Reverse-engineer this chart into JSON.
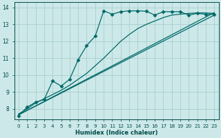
{
  "xlabel": "Humidex (Indice chaleur)",
  "background_color": "#cce8e8",
  "grid_color": "#aacece",
  "line_color": "#006868",
  "xlim": [
    -0.5,
    23.5
  ],
  "ylim": [
    7.4,
    14.3
  ],
  "xticks": [
    0,
    1,
    2,
    3,
    4,
    5,
    6,
    7,
    8,
    9,
    10,
    11,
    12,
    13,
    14,
    15,
    16,
    17,
    18,
    19,
    20,
    21,
    22,
    23
  ],
  "yticks": [
    8,
    9,
    10,
    11,
    12,
    13,
    14
  ],
  "series_zigzag_x": [
    0,
    1,
    2,
    3,
    4,
    5,
    6,
    7,
    8,
    9,
    10,
    11,
    12,
    13,
    14,
    15,
    16,
    17,
    18,
    19,
    20,
    21,
    22,
    23
  ],
  "series_zigzag_y": [
    7.6,
    8.1,
    8.4,
    8.55,
    9.65,
    9.35,
    9.75,
    10.9,
    11.75,
    12.3,
    13.8,
    13.6,
    13.75,
    13.8,
    13.8,
    13.78,
    13.55,
    13.75,
    13.75,
    13.75,
    13.55,
    13.65,
    13.6,
    13.6
  ],
  "series_curved_x": [
    0,
    1,
    2,
    3,
    4,
    5,
    6,
    7,
    8,
    9,
    10,
    11,
    12,
    13,
    14,
    15,
    16,
    17,
    18,
    19,
    20,
    21,
    22,
    23
  ],
  "series_curved_y": [
    7.7,
    8.0,
    8.35,
    8.6,
    8.85,
    9.1,
    9.4,
    9.75,
    10.1,
    10.55,
    11.0,
    11.5,
    12.0,
    12.4,
    12.75,
    13.0,
    13.2,
    13.4,
    13.55,
    13.6,
    13.65,
    13.68,
    13.68,
    13.65
  ],
  "series_line1_x": [
    0,
    23
  ],
  "series_line1_y": [
    7.65,
    13.7
  ],
  "series_line2_x": [
    0,
    23
  ],
  "series_line2_y": [
    7.65,
    13.55
  ]
}
